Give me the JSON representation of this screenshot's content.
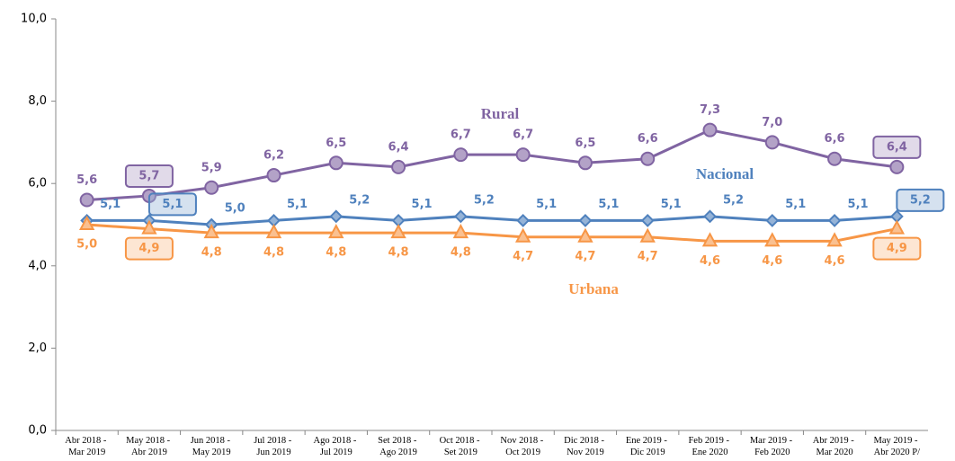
{
  "chart_data": {
    "type": "line",
    "categories": [
      "Abr 2018 - Mar 2019",
      "May 2018 - Abr 2019",
      "Jun 2018 - May 2019",
      "Jul 2018 - Jun 2019",
      "Ago 2018 - Jul 2019",
      "Set 2018 - Ago 2019",
      "Oct 2018 - Set 2019",
      "Nov 2018 - Oct 2019",
      "Dic 2018 - Nov 2019",
      "Ene 2019 - Dic 2019",
      "Feb 2019 - Ene 2020",
      "Mar 2019 - Feb 2020",
      "Abr 2019 - Mar 2020",
      "May 2019 - Abr 2020 P/"
    ],
    "series": [
      {
        "name": "Rural",
        "color": "#8064a2",
        "marker": "circle",
        "values": [
          5.6,
          5.7,
          5.9,
          6.2,
          6.5,
          6.4,
          6.7,
          6.7,
          6.5,
          6.6,
          7.3,
          7.0,
          6.6,
          6.4
        ],
        "value_labels": [
          "5,6",
          "5,7",
          "5,9",
          "6,2",
          "6,5",
          "6,4",
          "6,7",
          "6,7",
          "6,5",
          "6,6",
          "7,3",
          "7,0",
          "6,6",
          "6,4"
        ]
      },
      {
        "name": "Nacional",
        "color": "#4f81bd",
        "marker": "diamond",
        "values": [
          5.1,
          5.1,
          5.0,
          5.1,
          5.2,
          5.1,
          5.2,
          5.1,
          5.1,
          5.1,
          5.2,
          5.1,
          5.1,
          5.2
        ],
        "value_labels": [
          "5,1",
          "5,1",
          "5,0",
          "5,1",
          "5,2",
          "5,1",
          "5,2",
          "5,1",
          "5,1",
          "5,1",
          "5,2",
          "5,1",
          "5,1",
          "5,2"
        ]
      },
      {
        "name": "Urbana",
        "color": "#f79646",
        "marker": "triangle",
        "values": [
          5.0,
          4.9,
          4.8,
          4.8,
          4.8,
          4.8,
          4.8,
          4.7,
          4.7,
          4.7,
          4.6,
          4.6,
          4.6,
          4.9
        ],
        "value_labels": [
          "5,0",
          "4,9",
          "4,8",
          "4,8",
          "4,8",
          "4,8",
          "4,8",
          "4,7",
          "4,7",
          "4,7",
          "4,6",
          "4,6",
          "4,6",
          "4,9"
        ]
      }
    ],
    "ylim": [
      0,
      10
    ],
    "yticks": [
      {
        "value": 0,
        "label": "0,0"
      },
      {
        "value": 2,
        "label": "2,0"
      },
      {
        "value": 4,
        "label": "4,0"
      },
      {
        "value": 6,
        "label": "6,0"
      },
      {
        "value": 8,
        "label": "8,0"
      },
      {
        "value": 10,
        "label": "10,0"
      }
    ],
    "grid": false
  }
}
